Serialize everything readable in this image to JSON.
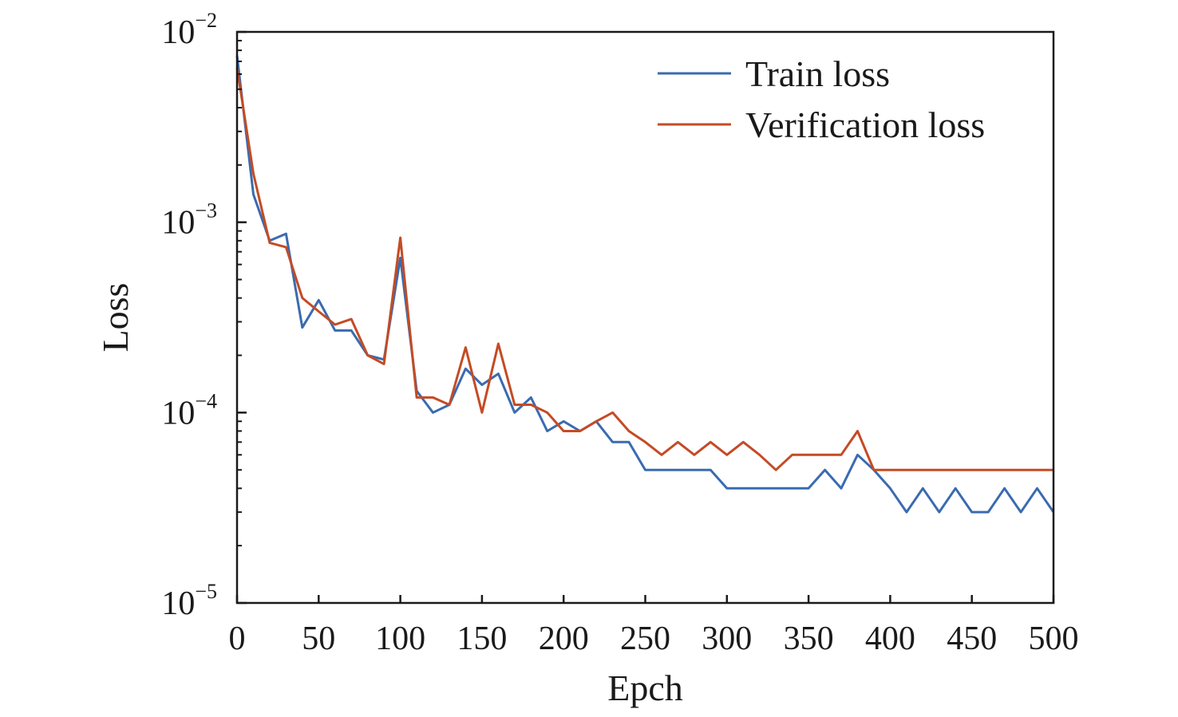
{
  "chart_data": {
    "type": "line",
    "title": "",
    "xlabel": "Epch",
    "ylabel": "Loss",
    "xlim": [
      0,
      500
    ],
    "ylim": [
      1e-05,
      0.01
    ],
    "yscale": "log",
    "grid": false,
    "legend_position": "top-right",
    "x_ticks": [
      "0",
      "50",
      "100",
      "150",
      "200",
      "250",
      "300",
      "350",
      "400",
      "450",
      "500"
    ],
    "y_ticks": [
      {
        "base": "10",
        "exponent": "−5",
        "value": 1e-05
      },
      {
        "base": "10",
        "exponent": "−4",
        "value": 0.0001
      },
      {
        "base": "10",
        "exponent": "−3",
        "value": 0.001
      },
      {
        "base": "10",
        "exponent": "−2",
        "value": 0.01
      }
    ],
    "x": [
      0,
      10,
      20,
      30,
      40,
      50,
      60,
      70,
      80,
      90,
      100,
      110,
      120,
      130,
      140,
      150,
      160,
      170,
      180,
      190,
      200,
      210,
      220,
      230,
      240,
      250,
      260,
      270,
      280,
      290,
      300,
      310,
      320,
      330,
      340,
      350,
      360,
      370,
      380,
      390,
      400,
      410,
      420,
      430,
      440,
      450,
      460,
      470,
      480,
      490,
      500
    ],
    "series": [
      {
        "name": "Train loss",
        "color": "#3a6bb0",
        "values": [
          0.0075,
          0.0014,
          0.0008,
          0.00087,
          0.00028,
          0.00039,
          0.00027,
          0.00027,
          0.0002,
          0.00019,
          0.00065,
          0.00013,
          0.0001,
          0.00011,
          0.00017,
          0.00014,
          0.00016,
          0.0001,
          0.00012,
          8e-05,
          9e-05,
          8e-05,
          9e-05,
          7e-05,
          7e-05,
          5e-05,
          5e-05,
          5e-05,
          5e-05,
          5e-05,
          4e-05,
          4e-05,
          4e-05,
          4e-05,
          4e-05,
          4e-05,
          5e-05,
          4e-05,
          6e-05,
          5e-05,
          4e-05,
          3e-05,
          4e-05,
          3e-05,
          4e-05,
          3e-05,
          3e-05,
          4e-05,
          3e-05,
          4e-05,
          3e-05
        ]
      },
      {
        "name": "Verification loss",
        "color": "#c44b24",
        "values": [
          0.0065,
          0.0018,
          0.00078,
          0.00074,
          0.0004,
          0.00034,
          0.00029,
          0.00031,
          0.0002,
          0.00018,
          0.00083,
          0.00012,
          0.00012,
          0.00011,
          0.00022,
          0.0001,
          0.00023,
          0.00011,
          0.00011,
          0.0001,
          8e-05,
          8e-05,
          9e-05,
          0.0001,
          8e-05,
          7e-05,
          6e-05,
          7e-05,
          6e-05,
          7e-05,
          6e-05,
          7e-05,
          6e-05,
          5e-05,
          6e-05,
          6e-05,
          6e-05,
          6e-05,
          8e-05,
          5e-05,
          5e-05,
          5e-05,
          5e-05,
          5e-05,
          5e-05,
          5e-05,
          5e-05,
          5e-05,
          5e-05,
          5e-05,
          5e-05
        ]
      }
    ]
  }
}
